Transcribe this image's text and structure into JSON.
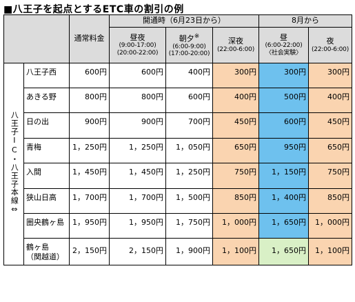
{
  "title": "■八王子を起点とするETC車の割引の例",
  "headers": {
    "regular": "通常料金",
    "opening_group": "開通時（6月23日から）",
    "august_group": "8月から",
    "daynight": {
      "label": "昼夜",
      "line1": "(9:00-17:00)",
      "line2": "(20:00-22:00)"
    },
    "morning_evening": {
      "label": "朝夕",
      "mark": "※",
      "line1": "(6:00-9:00)",
      "line2": "(17:00-20:00)"
    },
    "late_night": {
      "label": "深夜",
      "line1": "(22:00-6:00)"
    },
    "aug_day": {
      "label": "昼",
      "line1": "(6:00-22:00)",
      "line2": "〈社会実験〉"
    },
    "aug_night": {
      "label": "夜",
      "line1": "(22:00-6:00)"
    }
  },
  "origin_label": "八王子IC・八王子本線⇔",
  "colors": {
    "header": "#dcdcdc",
    "late_night": "#fad4b0",
    "aug_day": "#6ec1ee",
    "aug_day_last": "#d9f0c6",
    "aug_night": "#fad4b0"
  },
  "rows": [
    {
      "name": "八王子西",
      "regular": "600円",
      "daynight": "600円",
      "morning_evening": "400円",
      "late_night": "300円",
      "aug_day": "300円",
      "aug_night": "300円"
    },
    {
      "name": "あきる野",
      "regular": "800円",
      "daynight": "800円",
      "morning_evening": "600円",
      "late_night": "400円",
      "aug_day": "500円",
      "aug_night": "400円"
    },
    {
      "name": "日の出",
      "regular": "900円",
      "daynight": "900円",
      "morning_evening": "700円",
      "late_night": "450円",
      "aug_day": "600円",
      "aug_night": "450円"
    },
    {
      "name": "青梅",
      "regular": "1，250円",
      "daynight": "1，250円",
      "morning_evening": "1，050円",
      "late_night": "650円",
      "aug_day": "950円",
      "aug_night": "650円"
    },
    {
      "name": "入間",
      "regular": "1，450円",
      "daynight": "1，450円",
      "morning_evening": "1，250円",
      "late_night": "750円",
      "aug_day": "1，150円",
      "aug_night": "750円"
    },
    {
      "name": "狭山日高",
      "regular": "1，700円",
      "daynight": "1，700円",
      "morning_evening": "1，500円",
      "late_night": "850円",
      "aug_day": "1，400円",
      "aug_night": "850円"
    },
    {
      "name": "圏央鶴ヶ島",
      "regular": "1，950円",
      "daynight": "1，950円",
      "morning_evening": "1，750円",
      "late_night": "1，000円",
      "aug_day": "1，650円",
      "aug_night": "1，000円"
    },
    {
      "name": "鶴ヶ島",
      "name_sub": "（関越道）",
      "regular": "2，150円",
      "daynight": "2，150円",
      "morning_evening": "1，900円",
      "late_night": "1，100円",
      "aug_day": "1，650円",
      "aug_night": "1，100円"
    }
  ]
}
